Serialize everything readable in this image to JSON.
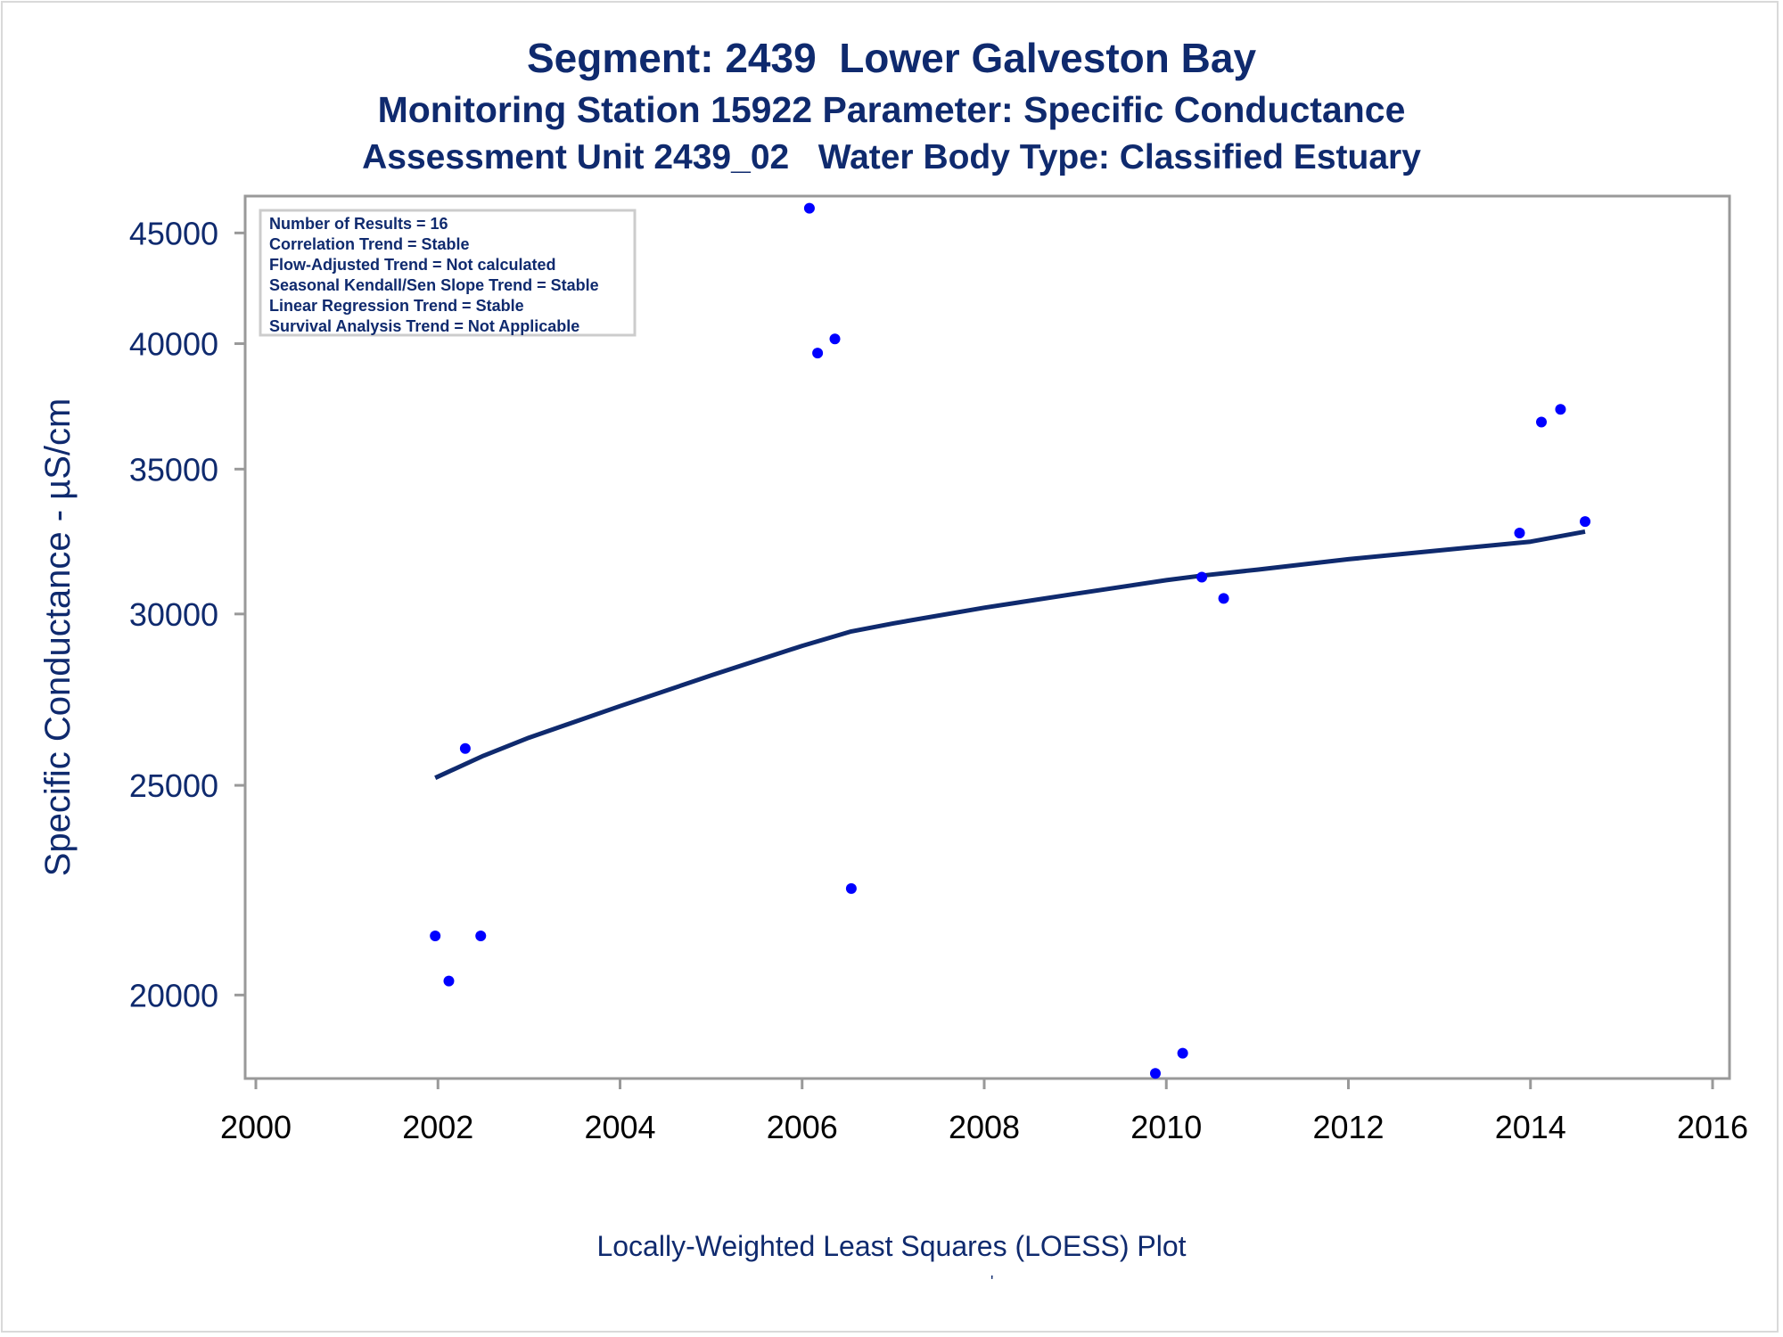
{
  "titles": {
    "line1": "Segment: 2439  Lower Galveston Bay",
    "line2": "Monitoring Station 15922 Parameter: Specific Conductance",
    "line3": "Assessment Unit 2439_02   Water Body Type: Classified Estuary"
  },
  "legend_lines": [
    "Number of Results = 16",
    "Correlation Trend = Stable",
    "Flow-Adjusted Trend = Not calculated",
    "Seasonal Kendall/Sen Slope Trend = Stable",
    "Linear Regression Trend = Stable",
    "Survival Analysis Trend = Not Applicable"
  ],
  "colors": {
    "points": "#0000ff",
    "loess_line": "#0f2a6e",
    "text": "#0f2a6e",
    "axis": "#999999"
  },
  "chart_data": {
    "type": "scatter",
    "ylabel": "Specific Conductance -  µS/cm",
    "xlabel": "Locally-Weighted Least Squares (LOESS) Plot",
    "y_scale": "log",
    "xlim": [
      2000,
      2016
    ],
    "ylim": [
      18300,
      46800
    ],
    "x_ticks": [
      2000,
      2002,
      2004,
      2006,
      2008,
      2010,
      2012,
      2014,
      2016
    ],
    "y_ticks": [
      20000,
      25000,
      30000,
      35000,
      40000,
      45000
    ],
    "points": [
      {
        "x": 2001.97,
        "y": 21300
      },
      {
        "x": 2002.12,
        "y": 20300
      },
      {
        "x": 2002.3,
        "y": 26000
      },
      {
        "x": 2002.47,
        "y": 21300
      },
      {
        "x": 2006.08,
        "y": 46200
      },
      {
        "x": 2006.17,
        "y": 39600
      },
      {
        "x": 2006.36,
        "y": 40200
      },
      {
        "x": 2006.54,
        "y": 22400
      },
      {
        "x": 2009.88,
        "y": 18400
      },
      {
        "x": 2010.18,
        "y": 18800
      },
      {
        "x": 2010.39,
        "y": 31200
      },
      {
        "x": 2010.63,
        "y": 30500
      },
      {
        "x": 2013.88,
        "y": 32700
      },
      {
        "x": 2014.12,
        "y": 36800
      },
      {
        "x": 2014.33,
        "y": 37300
      },
      {
        "x": 2014.6,
        "y": 33100
      }
    ],
    "loess_line": [
      {
        "x": 2001.97,
        "y": 25200
      },
      {
        "x": 2002.5,
        "y": 25800
      },
      {
        "x": 2003.0,
        "y": 26300
      },
      {
        "x": 2004.0,
        "y": 27200
      },
      {
        "x": 2005.0,
        "y": 28100
      },
      {
        "x": 2006.0,
        "y": 29000
      },
      {
        "x": 2006.54,
        "y": 29450
      },
      {
        "x": 2007.0,
        "y": 29700
      },
      {
        "x": 2008.0,
        "y": 30200
      },
      {
        "x": 2009.0,
        "y": 30650
      },
      {
        "x": 2010.0,
        "y": 31100
      },
      {
        "x": 2010.39,
        "y": 31250
      },
      {
        "x": 2011.0,
        "y": 31450
      },
      {
        "x": 2012.0,
        "y": 31800
      },
      {
        "x": 2013.0,
        "y": 32100
      },
      {
        "x": 2014.0,
        "y": 32400
      },
      {
        "x": 2014.6,
        "y": 32750
      }
    ]
  },
  "footnote_mark": "'"
}
